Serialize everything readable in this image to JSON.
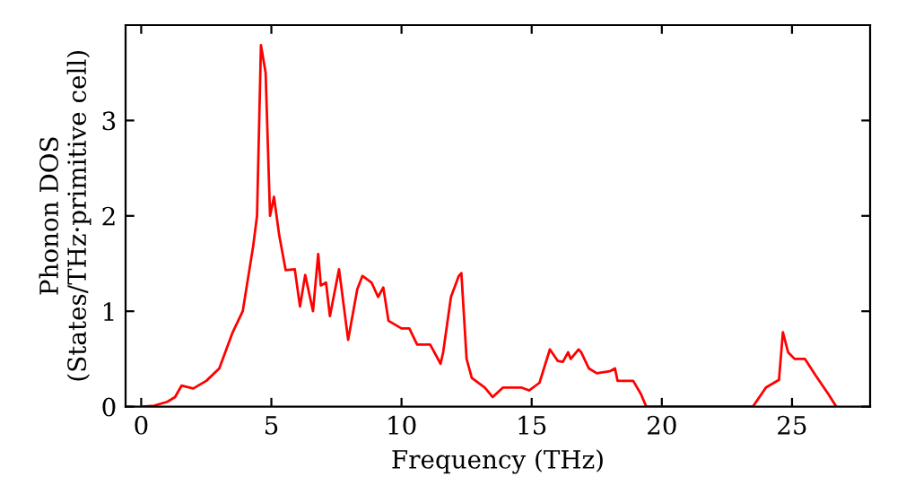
{
  "chart_data": {
    "type": "line",
    "xlabel": "Frequency (THz)",
    "ylabel": "Phonon DOS\n(States/THz·primitive cell)",
    "xlim": [
      -0.6,
      28
    ],
    "ylim": [
      0,
      4
    ],
    "xticks": [
      0,
      5,
      10,
      15,
      20,
      25
    ],
    "yticks": [
      0,
      1,
      2,
      3
    ],
    "grid": false,
    "legend": false,
    "series": [
      {
        "color": "#ff0000",
        "x": [
          0,
          0.5,
          1.0,
          1.3,
          1.55,
          2.0,
          2.5,
          3.0,
          3.5,
          3.9,
          4.3,
          4.45,
          4.6,
          4.78,
          4.95,
          5.1,
          5.3,
          5.55,
          5.9,
          6.1,
          6.3,
          6.6,
          6.8,
          6.9,
          7.1,
          7.25,
          7.6,
          7.95,
          8.3,
          8.5,
          8.6,
          8.85,
          9.1,
          9.3,
          9.5,
          10.0,
          10.3,
          10.6,
          11.1,
          11.5,
          11.6,
          11.9,
          12.2,
          12.3,
          12.5,
          12.7,
          13.2,
          13.5,
          13.9,
          14.6,
          14.9,
          15.3,
          15.7,
          16.0,
          16.2,
          16.4,
          16.5,
          16.8,
          16.9,
          17.2,
          17.5,
          18.0,
          18.2,
          18.3,
          18.9,
          19.2,
          19.4,
          23.5,
          24.0,
          24.5,
          24.65,
          24.85,
          25.1,
          25.5,
          25.9,
          26.4,
          26.7
        ],
        "values": [
          0,
          0.01,
          0.05,
          0.1,
          0.22,
          0.19,
          0.27,
          0.4,
          0.77,
          1.0,
          1.68,
          2.0,
          3.79,
          3.5,
          2.0,
          2.2,
          1.8,
          1.43,
          1.44,
          1.05,
          1.38,
          1.0,
          1.6,
          1.27,
          1.3,
          0.95,
          1.44,
          0.7,
          1.23,
          1.37,
          1.35,
          1.3,
          1.15,
          1.25,
          0.9,
          0.82,
          0.82,
          0.65,
          0.65,
          0.45,
          0.57,
          1.15,
          1.37,
          1.4,
          0.5,
          0.3,
          0.2,
          0.1,
          0.2,
          0.2,
          0.17,
          0.25,
          0.6,
          0.48,
          0.47,
          0.57,
          0.5,
          0.6,
          0.57,
          0.4,
          0.35,
          0.37,
          0.4,
          0.27,
          0.27,
          0.13,
          0,
          0,
          0.2,
          0.28,
          0.78,
          0.57,
          0.5,
          0.5,
          0.33,
          0.13,
          0
        ]
      }
    ]
  }
}
